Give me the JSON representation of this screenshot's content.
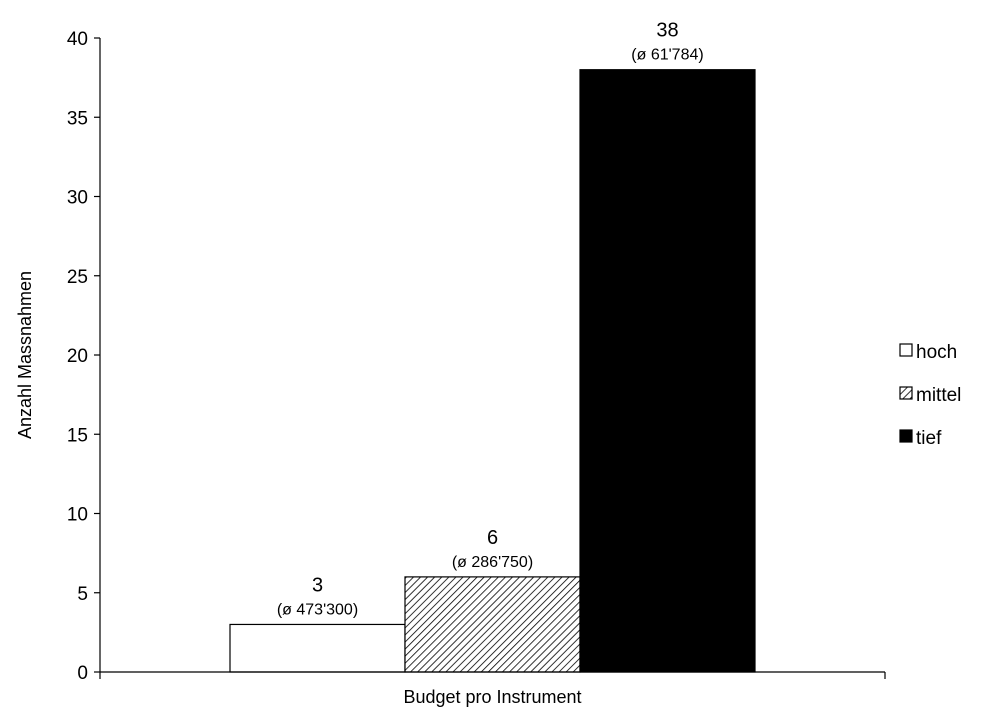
{
  "chart_data": {
    "type": "bar",
    "xlabel": "Budget pro Instrument",
    "ylabel": "Anzahl Massnahmen",
    "ylim": [
      0,
      40
    ],
    "yticks": [
      0,
      5,
      10,
      15,
      20,
      25,
      30,
      35,
      40
    ],
    "grid": false,
    "legend_position": "right",
    "series": [
      {
        "name": "hoch",
        "values": [
          3
        ],
        "label": "3",
        "sublabel": "(ø 473'300)",
        "fill": "white"
      },
      {
        "name": "mittel",
        "values": [
          6
        ],
        "label": "6",
        "sublabel": "(ø 286'750)",
        "fill": "hatched"
      },
      {
        "name": "tief",
        "values": [
          38
        ],
        "label": "38",
        "sublabel": "(ø 61'784)",
        "fill": "black"
      }
    ],
    "colors": {
      "hoch": "#ffffff",
      "mittel": "#bfbfbf",
      "tief": "#000000",
      "stroke": "#000000"
    }
  }
}
